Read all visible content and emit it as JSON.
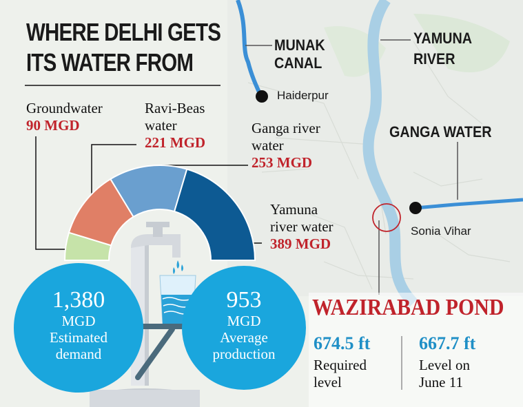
{
  "title": {
    "line1": "WHERE DELHI GETS",
    "line2": "ITS WATER FROM"
  },
  "sources": [
    {
      "name_line1": "Groundwater",
      "name_line2": "",
      "value": "90 MGD",
      "color": "#c6e3a9"
    },
    {
      "name_line1": "Ravi-Beas",
      "name_line2": "water",
      "value": "221 MGD",
      "color": "#e07f66"
    },
    {
      "name_line1": "Ganga river",
      "name_line2": "water",
      "value": "253 MGD",
      "color": "#6a9fcf"
    },
    {
      "name_line1": "Yamuna",
      "name_line2": "river water",
      "value": "389 MGD",
      "color": "#0d5a93"
    }
  ],
  "demand": {
    "number": "1,380",
    "unit": "MGD",
    "line1": "Estimated",
    "line2": "demand"
  },
  "production": {
    "number": "953",
    "unit": "MGD",
    "line1": "Average",
    "line2": "production"
  },
  "map": {
    "munak_line1": "MUNAK",
    "munak_line2": "CANAL",
    "yamuna_line1": "YAMUNA",
    "yamuna_line2": "RIVER",
    "ganga_water": "GANGA WATER",
    "haiderpur": "Haiderpur",
    "sonia_vihar": "Sonia Vihar"
  },
  "wazirabad": {
    "title": "WAZIRABAD POND",
    "required_value": "674.5 ft",
    "required_line1": "Required",
    "required_line2": "level",
    "level_value": "667.7 ft",
    "level_line1": "Level on",
    "level_line2": "June 11"
  },
  "colors": {
    "accent_red": "#c0232b",
    "circle_blue": "#1aa6dd",
    "river_blue": "#3b8fd6"
  }
}
